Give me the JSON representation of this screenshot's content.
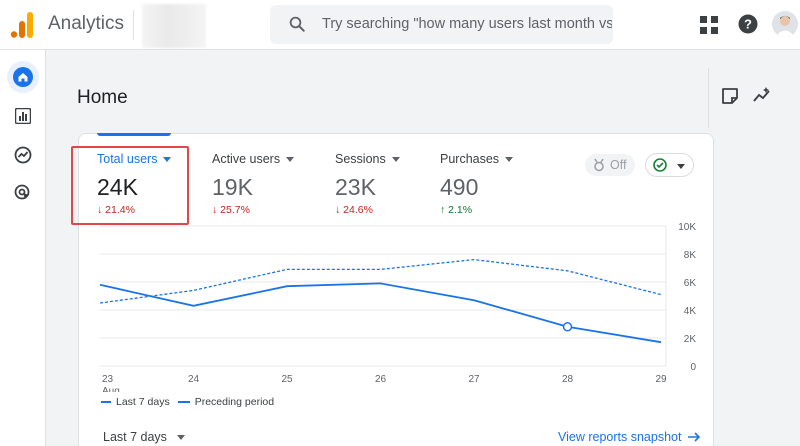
{
  "app": {
    "title": "Analytics"
  },
  "search": {
    "placeholder": "Try searching \"how many users last month vs..."
  },
  "page": {
    "title": "Home"
  },
  "metrics": [
    {
      "label": "Total users",
      "value": "24K",
      "change": "21.4%",
      "direction": "down",
      "selected": true
    },
    {
      "label": "Active users",
      "value": "19K",
      "change": "25.7%",
      "direction": "down",
      "selected": false
    },
    {
      "label": "Sessions",
      "value": "23K",
      "change": "24.6%",
      "direction": "down",
      "selected": false
    },
    {
      "label": "Purchases",
      "value": "490",
      "change": "2.1%",
      "direction": "up",
      "selected": false
    }
  ],
  "toggle": {
    "off_label": "Off"
  },
  "legend": {
    "current": "Last 7 days",
    "previous": "Preceding period"
  },
  "footer": {
    "range": "Last 7 days",
    "link": "View reports snapshot"
  },
  "colors": {
    "accent": "#1a73e8",
    "down": "#c5221f",
    "up": "#137333",
    "highlight": "#e0484b"
  },
  "chart_data": {
    "type": "line",
    "x": [
      "23",
      "24",
      "25",
      "26",
      "27",
      "28",
      "29"
    ],
    "x_sublabel": "Aug",
    "y_ticks": [
      "10K",
      "8K",
      "6K",
      "4K",
      "2K",
      "0"
    ],
    "ylim": [
      0,
      10000
    ],
    "series": [
      {
        "name": "Last 7 days",
        "style": "solid",
        "values": [
          5800,
          4300,
          5700,
          5900,
          4700,
          2800,
          1700
        ]
      },
      {
        "name": "Preceding period",
        "style": "dashed",
        "values": [
          4500,
          5400,
          6900,
          6900,
          7600,
          6800,
          5100
        ]
      }
    ],
    "marker_index": 5
  }
}
